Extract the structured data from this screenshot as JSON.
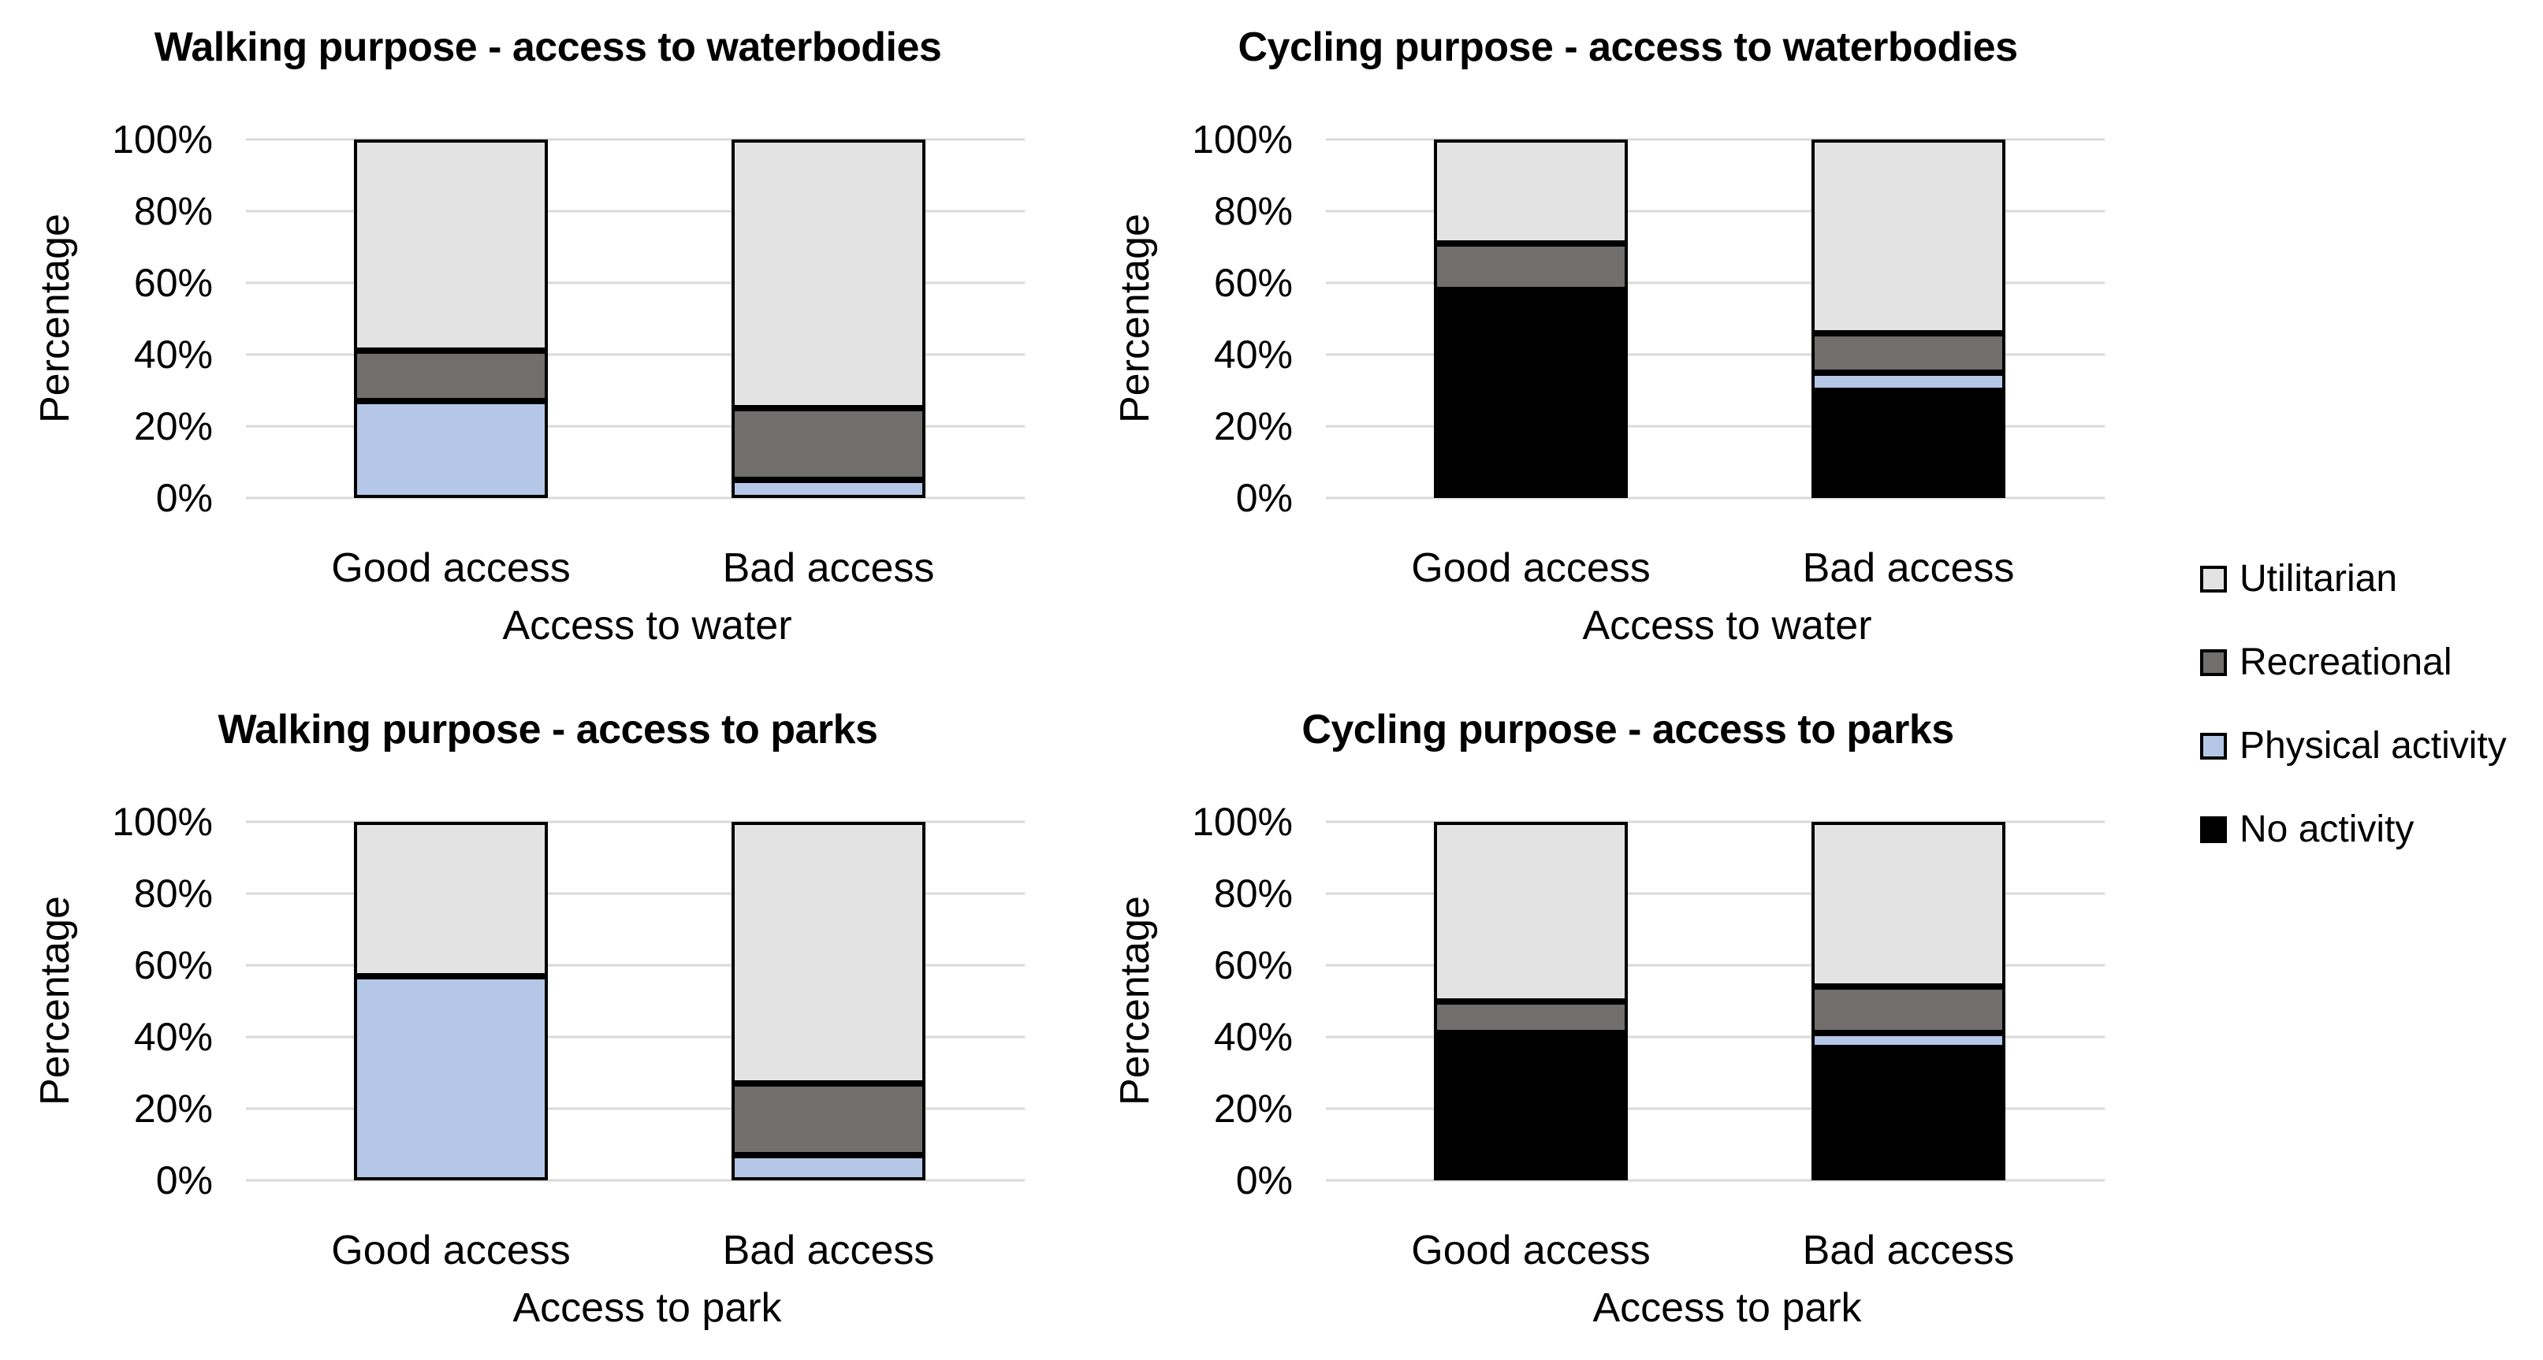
{
  "page": {
    "background": "#ffffff"
  },
  "colors": {
    "utilitarian": "#e3e3e3",
    "recreational": "#716e6e",
    "physical": "#b4c7e7",
    "none": "#000000",
    "gridline": "#d9d9d9",
    "border": "#000000"
  },
  "y_axis": {
    "label": "Percentage",
    "ticks": [
      "100%",
      "80%",
      "60%",
      "40%",
      "20%",
      "0%"
    ]
  },
  "legend": {
    "items": [
      {
        "label": "Utilitarian",
        "color_key": "utilitarian"
      },
      {
        "label": "Recreational",
        "color_key": "recreational"
      },
      {
        "label": "Physical activity",
        "color_key": "physical"
      },
      {
        "label": "No activity",
        "color_key": "none"
      }
    ]
  },
  "chart_data": [
    {
      "type": "bar",
      "stacked": true,
      "title": "Walking purpose - access to waterbodies",
      "xlabel": "Access to water",
      "ylabel": "Percentage",
      "ylim": [
        0,
        100
      ],
      "yticks": [
        0,
        20,
        40,
        60,
        80,
        100
      ],
      "grid": true,
      "legend_position": "right",
      "categories": [
        "Good access",
        "Bad access"
      ],
      "series": [
        {
          "name": "No activity",
          "color_key": "none",
          "values": [
            0,
            0
          ]
        },
        {
          "name": "Physical activity",
          "color_key": "physical",
          "values": [
            27,
            5
          ]
        },
        {
          "name": "Recreational",
          "color_key": "recreational",
          "values": [
            14,
            20
          ]
        },
        {
          "name": "Utilitarian",
          "color_key": "utilitarian",
          "values": [
            59,
            75
          ]
        }
      ]
    },
    {
      "type": "bar",
      "stacked": true,
      "title": "Cycling purpose - access to waterbodies",
      "xlabel": "Access to water",
      "ylabel": "Percentage",
      "ylim": [
        0,
        100
      ],
      "yticks": [
        0,
        20,
        40,
        60,
        80,
        100
      ],
      "grid": true,
      "legend_position": "right",
      "categories": [
        "Good access",
        "Bad access"
      ],
      "series": [
        {
          "name": "No activity",
          "color_key": "none",
          "values": [
            58,
            30
          ]
        },
        {
          "name": "Physical activity",
          "color_key": "physical",
          "values": [
            0,
            5
          ]
        },
        {
          "name": "Recreational",
          "color_key": "recreational",
          "values": [
            13,
            11
          ]
        },
        {
          "name": "Utilitarian",
          "color_key": "utilitarian",
          "values": [
            29,
            54
          ]
        }
      ]
    },
    {
      "type": "bar",
      "stacked": true,
      "title": "Walking purpose - access to parks",
      "xlabel": "Access to park",
      "ylabel": "Percentage",
      "ylim": [
        0,
        100
      ],
      "yticks": [
        0,
        20,
        40,
        60,
        80,
        100
      ],
      "grid": true,
      "legend_position": "right",
      "categories": [
        "Good access",
        "Bad access"
      ],
      "series": [
        {
          "name": "No activity",
          "color_key": "none",
          "values": [
            0,
            0
          ]
        },
        {
          "name": "Physical activity",
          "color_key": "physical",
          "values": [
            57,
            7
          ]
        },
        {
          "name": "Recreational",
          "color_key": "recreational",
          "values": [
            0,
            20
          ]
        },
        {
          "name": "Utilitarian",
          "color_key": "utilitarian",
          "values": [
            43,
            73
          ]
        }
      ]
    },
    {
      "type": "bar",
      "stacked": true,
      "title": "Cycling purpose - access to parks",
      "xlabel": "Access to park",
      "ylabel": "Percentage",
      "ylim": [
        0,
        100
      ],
      "yticks": [
        0,
        20,
        40,
        60,
        80,
        100
      ],
      "grid": true,
      "legend_position": "right",
      "categories": [
        "Good access",
        "Bad access"
      ],
      "series": [
        {
          "name": "No activity",
          "color_key": "none",
          "values": [
            41,
            37
          ]
        },
        {
          "name": "Physical activity",
          "color_key": "physical",
          "values": [
            0,
            4
          ]
        },
        {
          "name": "Recreational",
          "color_key": "recreational",
          "values": [
            9,
            13
          ]
        },
        {
          "name": "Utilitarian",
          "color_key": "utilitarian",
          "values": [
            50,
            46
          ]
        }
      ]
    }
  ]
}
